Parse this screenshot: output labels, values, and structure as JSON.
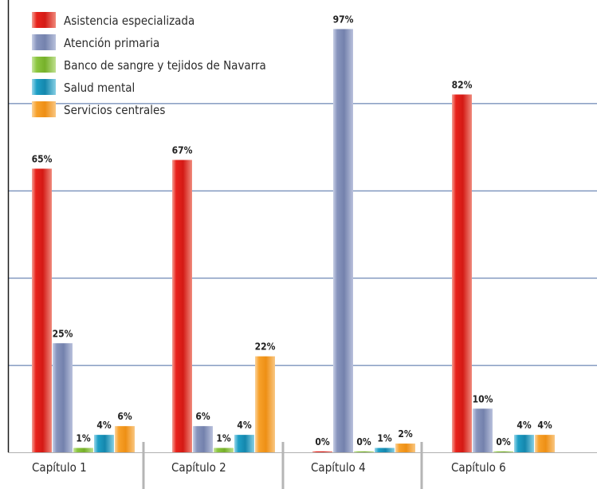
{
  "chart_data": {
    "type": "bar",
    "categories": [
      "Capítulo 1",
      "Capítulo 2",
      "Capítulo 4",
      "Capítulo 6"
    ],
    "series": [
      {
        "name": "Asistencia especializada",
        "values": [
          65,
          67,
          0,
          82
        ],
        "labels": [
          "65%",
          "67%",
          "0%",
          "82%"
        ],
        "color": "#e8231c"
      },
      {
        "name": "Atención primaria",
        "values": [
          25,
          6,
          97,
          10
        ],
        "labels": [
          "25%",
          "6%",
          "97%",
          "10%"
        ],
        "color": "#8794bd"
      },
      {
        "name": "Banco de sangre y tejidos de Navarra",
        "values": [
          1,
          1,
          0,
          0
        ],
        "labels": [
          "1%",
          "1%",
          "0%",
          "0%"
        ],
        "color": "#8cc63f"
      },
      {
        "name": "Salud mental",
        "values": [
          4,
          4,
          1,
          4
        ],
        "labels": [
          "4%",
          "4%",
          "1%",
          "4%"
        ],
        "color": "#1e9fc6"
      },
      {
        "name": "Servicios centrales",
        "values": [
          6,
          22,
          2,
          4
        ],
        "labels": [
          "6%",
          "22%",
          "2%",
          "4%"
        ],
        "color": "#f7a12b"
      }
    ],
    "ylim": [
      0,
      100
    ],
    "grid": true,
    "legend": "top-left"
  }
}
